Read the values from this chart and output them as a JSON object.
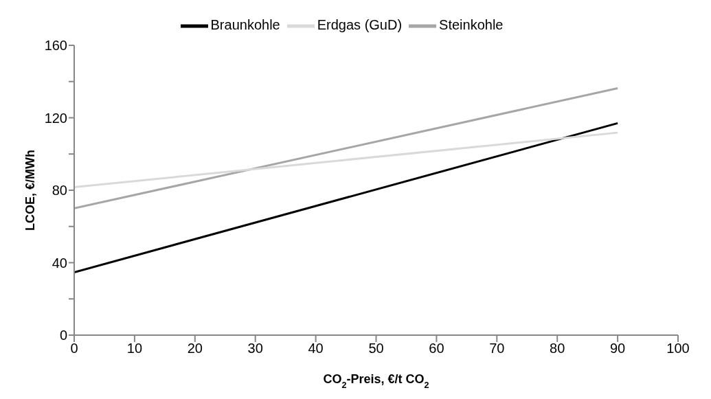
{
  "chart_data": {
    "type": "line",
    "xlabel": "CO$_{2}$-Preis, €/t CO$_{2}$",
    "ylabel": "LCOE, €/MWh",
    "x": [
      0,
      90
    ],
    "series": [
      {
        "name": "Braunkohle",
        "color": "#000000",
        "values": [
          34.7,
          117
        ]
      },
      {
        "name": "Steinkohle",
        "color": "#a6a6a6",
        "values": [
          70,
          136.3
        ]
      },
      {
        "name": "Erdgas (GuD)",
        "color": "#d9d9d9",
        "values": [
          81.7,
          111.8
        ]
      }
    ],
    "xlim": [
      0,
      100
    ],
    "xticks": [
      0,
      10,
      20,
      30,
      40,
      50,
      60,
      70,
      80,
      90,
      100
    ],
    "ylim": [
      0,
      160
    ],
    "yticks": [
      0,
      {
        "value": 20,
        "label": null
      },
      40,
      {
        "value": 60,
        "label": null
      },
      80,
      {
        "value": 100,
        "label": null
      },
      120,
      {
        "value": 140,
        "label": null
      },
      160
    ],
    "grid": false,
    "legend": "top",
    "marker": "none",
    "line_style": "solid"
  }
}
